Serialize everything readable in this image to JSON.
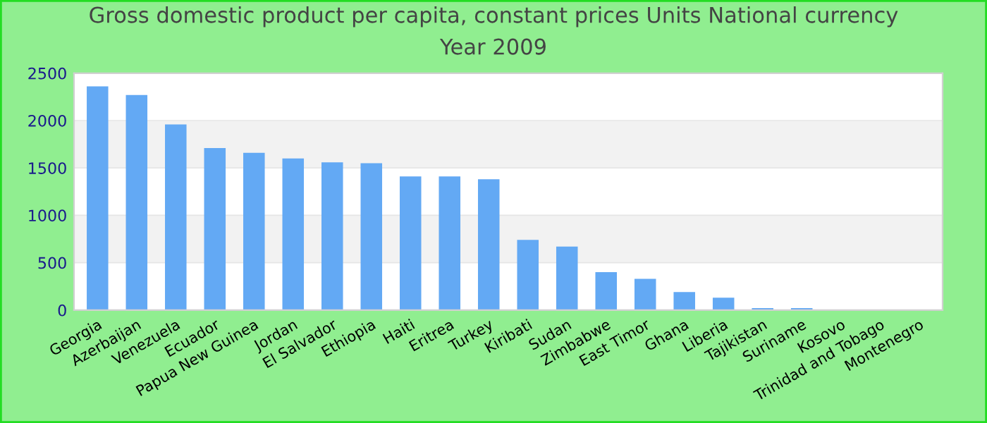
{
  "chart_data": {
    "type": "bar",
    "title": "Gross domestic product per capita, constant prices Units National currency",
    "subtitle": "Year 2009",
    "categories": [
      "Georgia",
      "Azerbaijan",
      "Venezuela",
      "Ecuador",
      "Papua New Guinea",
      "Jordan",
      "El Salvador",
      "Ethiopia",
      "Haiti",
      "Eritrea",
      "Turkey",
      "Kiribati",
      "Sudan",
      "Zimbabwe",
      "East Timor",
      "Ghana",
      "Liberia",
      "Tajikistan",
      "Suriname",
      "Kosovo",
      "Trinidad and Tobago",
      "Montenegro"
    ],
    "values": [
      2360,
      2270,
      1960,
      1710,
      1660,
      1600,
      1560,
      1550,
      1410,
      1410,
      1380,
      740,
      670,
      400,
      330,
      190,
      130,
      20,
      20,
      null,
      null,
      null
    ],
    "color": "#63a9f4",
    "ylim": [
      0,
      2500
    ],
    "yticks": [
      0,
      500,
      1000,
      1500,
      2000,
      2500
    ],
    "grid": "y",
    "legend": false
  }
}
